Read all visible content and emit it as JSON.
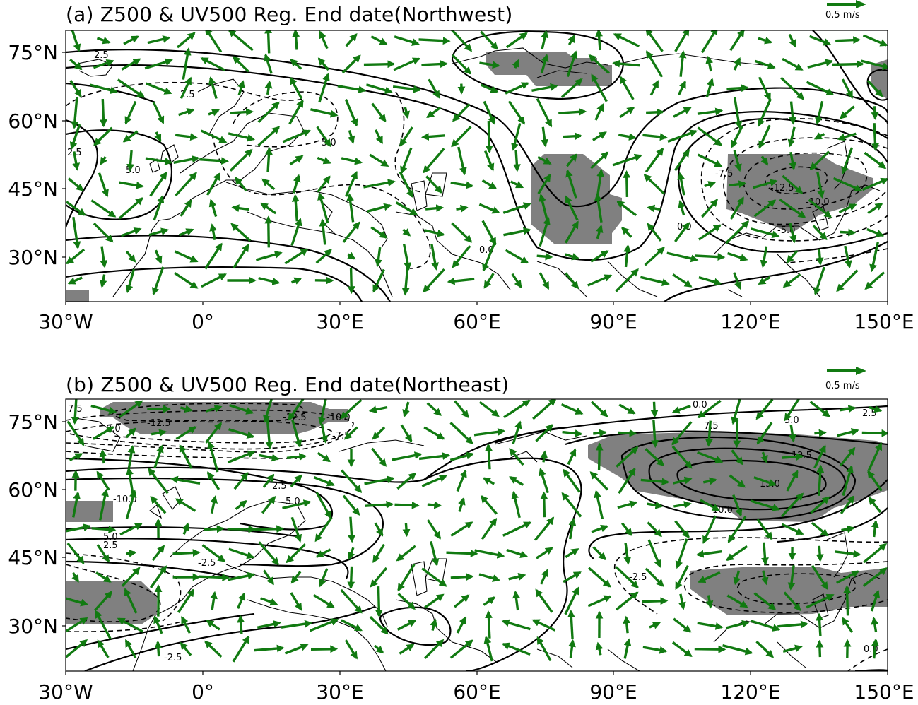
{
  "panels": [
    {
      "title": "(a) Z500 & UV500 Reg. End date(Northwest)",
      "reference_vector_label": "0.5 m/s",
      "y_ticks": [
        "75°N",
        "60°N",
        "45°N",
        "30°N"
      ],
      "x_ticks": [
        "30°W",
        "0°",
        "30°E",
        "60°E",
        "90°E",
        "120°E",
        "150°E"
      ],
      "contour_labels": [
        "2.5",
        "2.5",
        "2.5",
        "5.0",
        "5.0",
        "0.0",
        "-7.5",
        "-10.0",
        "-12.5",
        "0.0",
        "-5.0"
      ]
    },
    {
      "title": "(b) Z500 & UV500 Reg. End date(Northeast)",
      "reference_vector_label": "0.5 m/s",
      "y_ticks": [
        "75°N",
        "60°N",
        "45°N",
        "30°N"
      ],
      "x_ticks": [
        "30°W",
        "0°",
        "30°E",
        "60°E",
        "90°E",
        "120°E",
        "150°E"
      ],
      "contour_labels": [
        "7.5",
        "0.0",
        "-12.5",
        "-12.5",
        "-10.0",
        "-7.5",
        "0.0",
        "2.5",
        "5.0",
        "7.5",
        "12.5",
        "15.0",
        "10.0",
        "2.5",
        "5.0",
        "-10.0",
        "5.0",
        "2.5",
        "-2.5",
        "-2.5",
        "0.0",
        "-2.5"
      ]
    }
  ],
  "colors": {
    "vector": "#117a11",
    "shading": "#808080",
    "contour": "#000000",
    "coastline": "#000000"
  },
  "icons": [
    "reference-arrow-icon",
    "wind-vector-icon"
  ]
}
